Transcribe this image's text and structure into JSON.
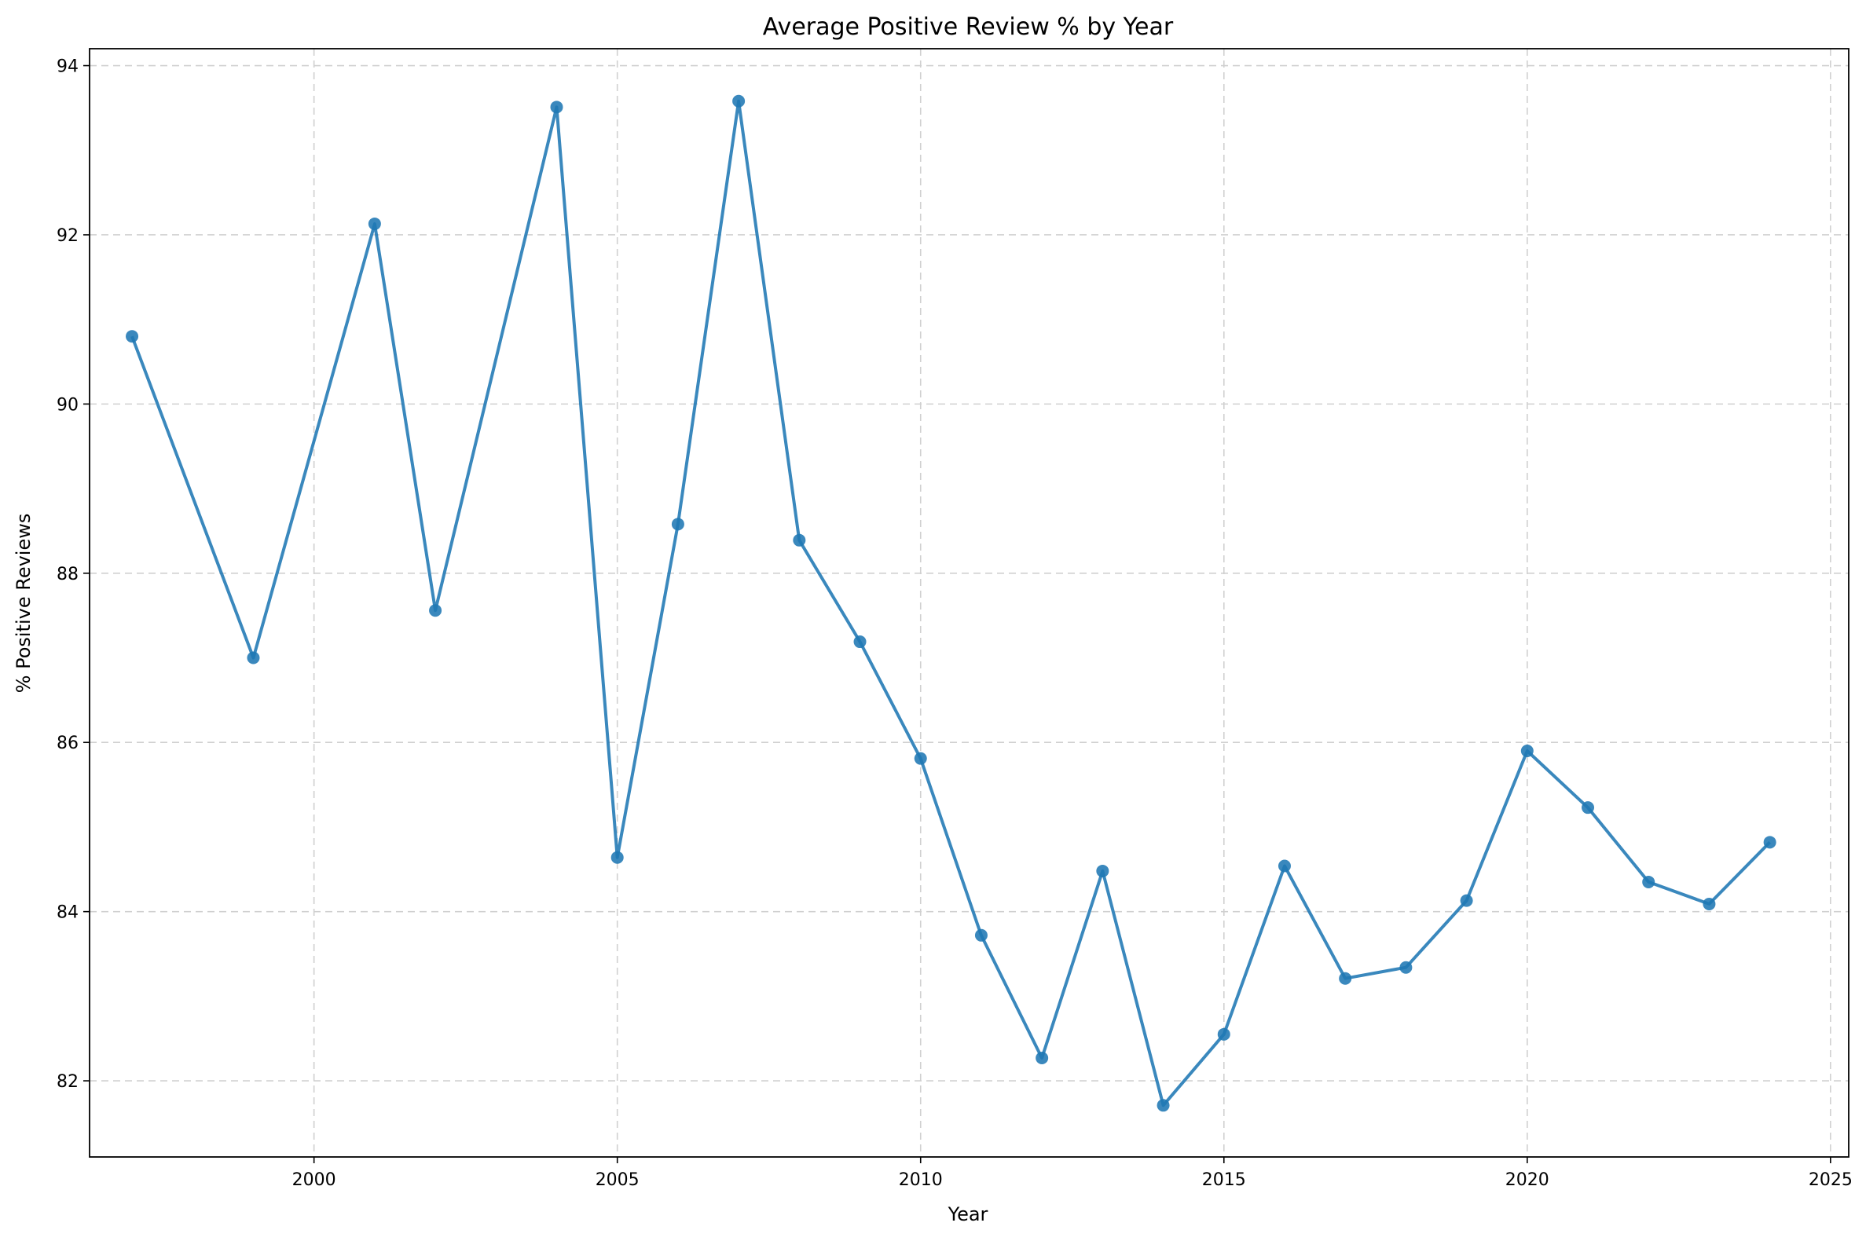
{
  "chart_data": {
    "type": "line",
    "title": "Average Positive Review % by Year",
    "xlabel": "Year",
    "ylabel": "% Positive Reviews",
    "xlim": [
      1996.3,
      2025.3
    ],
    "ylim": [
      81.1,
      94.2
    ],
    "xticks": [
      2000,
      2005,
      2010,
      2015,
      2020,
      2025
    ],
    "yticks": [
      82,
      84,
      86,
      88,
      90,
      92,
      94
    ],
    "grid": true,
    "grid_style": "dashed",
    "legend": false,
    "series": [
      {
        "color": "#1f77b4",
        "marker": "circle",
        "points": [
          {
            "x": 1997,
            "y": 90.8
          },
          {
            "x": 1999,
            "y": 87.0
          },
          {
            "x": 2001,
            "y": 92.13
          },
          {
            "x": 2002,
            "y": 87.56
          },
          {
            "x": 2004,
            "y": 93.51
          },
          {
            "x": 2005,
            "y": 84.64
          },
          {
            "x": 2006,
            "y": 88.58
          },
          {
            "x": 2007,
            "y": 93.58
          },
          {
            "x": 2008,
            "y": 88.39
          },
          {
            "x": 2009,
            "y": 87.19
          },
          {
            "x": 2010,
            "y": 85.81
          },
          {
            "x": 2011,
            "y": 83.72
          },
          {
            "x": 2012,
            "y": 82.27
          },
          {
            "x": 2013,
            "y": 84.48
          },
          {
            "x": 2014,
            "y": 81.71
          },
          {
            "x": 2015,
            "y": 82.55
          },
          {
            "x": 2016,
            "y": 84.54
          },
          {
            "x": 2017,
            "y": 83.21
          },
          {
            "x": 2018,
            "y": 83.34
          },
          {
            "x": 2019,
            "y": 84.13
          },
          {
            "x": 2020,
            "y": 85.9
          },
          {
            "x": 2021,
            "y": 85.23
          },
          {
            "x": 2022,
            "y": 84.35
          },
          {
            "x": 2023,
            "y": 84.09
          },
          {
            "x": 2024,
            "y": 84.82
          }
        ]
      }
    ]
  }
}
